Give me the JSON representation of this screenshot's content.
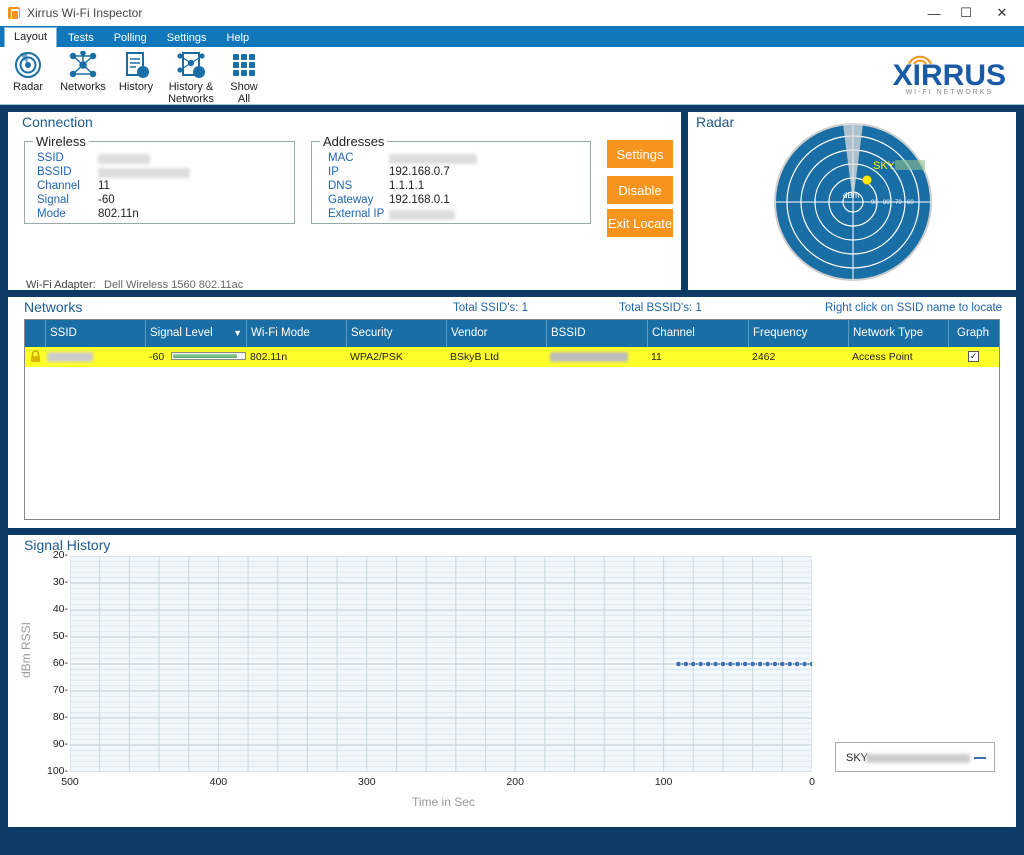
{
  "window": {
    "title": "Xirrus Wi-Fi Inspector",
    "controls": [
      "—",
      "☐",
      "✕"
    ]
  },
  "menu": {
    "tabs": [
      "Layout",
      "Tests",
      "Polling",
      "Settings",
      "Help"
    ],
    "active": "Layout"
  },
  "ribbon": {
    "buttons": [
      {
        "label": "Radar",
        "icon": "radar-icon"
      },
      {
        "label": "Networks",
        "icon": "networks-icon"
      },
      {
        "label": "History",
        "icon": "history-icon"
      },
      {
        "label": "History &",
        "label2": "Networks",
        "icon": "history-networks-icon"
      },
      {
        "label": "Show",
        "label2": "All",
        "icon": "show-all-icon"
      }
    ],
    "logo": {
      "main": "XIRRUS",
      "sub": "WI-FI NETWORKS"
    }
  },
  "connection": {
    "title": "Connection",
    "wireless": {
      "legend": "Wireless",
      "ssid_label": "SSID",
      "bssid_label": "BSSID",
      "channel_label": "Channel",
      "channel": "11",
      "signal_label": "Signal",
      "signal": "-60",
      "mode_label": "Mode",
      "mode": "802.11n"
    },
    "addresses": {
      "legend": "Addresses",
      "mac_label": "MAC",
      "ip_label": "IP",
      "ip": "192.168.0.7",
      "dns_label": "DNS",
      "dns": "1.1.1.1",
      "gateway_label": "Gateway",
      "gateway": "192.168.0.1",
      "external_ip_label": "External IP"
    },
    "buttons": {
      "settings": "Settings",
      "disable": "Disable",
      "exit_locate": "Exit Locate"
    },
    "adapter_label": "Wi-Fi Adapter:",
    "adapter": "Dell Wireless 1560 802.11ac"
  },
  "radar": {
    "title": "Radar",
    "network_label": "SKY",
    "unit": "dBm",
    "rings": [
      "-90",
      "-80",
      "-70",
      "-60"
    ]
  },
  "networks": {
    "title": "Networks",
    "total_ssids": "Total SSID's:  1",
    "total_bssids": "Total BSSID's:  1",
    "hint": "Right click on SSID name to locate",
    "columns": [
      "SSID",
      "Signal Level",
      "Wi-Fi Mode",
      "Security",
      "Vendor",
      "BSSID",
      "Channel",
      "Frequency",
      "Network Type",
      "Graph"
    ],
    "rows": [
      {
        "signal": "-60",
        "signal_fraction": 0.9,
        "mode": "802.11n",
        "security": "WPA2/PSK",
        "vendor": "BSkyB Ltd",
        "channel": "11",
        "frequency": "2462",
        "network_type": "Access Point",
        "graph": true
      }
    ]
  },
  "history": {
    "title": "Signal History",
    "ylabel": "dBm RSSI",
    "xlabel": "Time in Sec",
    "legend_label": "SKY"
  },
  "chart_data": {
    "type": "line",
    "ylabel": "dBm RSSI",
    "xlabel": "Time in Sec",
    "y_ticks": [
      "20-",
      "30-",
      "40-",
      "50-",
      "60-",
      "70-",
      "80-",
      "90-",
      "100-"
    ],
    "x_ticks": [
      "500",
      "400",
      "300",
      "200",
      "100",
      "0"
    ],
    "xlim": [
      500,
      0
    ],
    "ylim": [
      -20,
      -100
    ],
    "grid": true,
    "legend_placement": "bottom-right",
    "series": [
      {
        "name": "SKY",
        "color": "#3a6fb0",
        "x": [
          90,
          85,
          80,
          75,
          70,
          65,
          60,
          55,
          50,
          45,
          40,
          35,
          30,
          25,
          20,
          15,
          10,
          5,
          0
        ],
        "y": [
          -60,
          -60,
          -60,
          -60,
          -60,
          -60,
          -60,
          -60,
          -60,
          -60,
          -60,
          -60,
          -60,
          -60,
          -60,
          -60,
          -60,
          -60,
          -60
        ]
      }
    ]
  },
  "colors": {
    "accent": "#f7941d",
    "header": "#1a6ea6",
    "highlight_row": "#ffff2a",
    "frame": "#0d3a66"
  }
}
